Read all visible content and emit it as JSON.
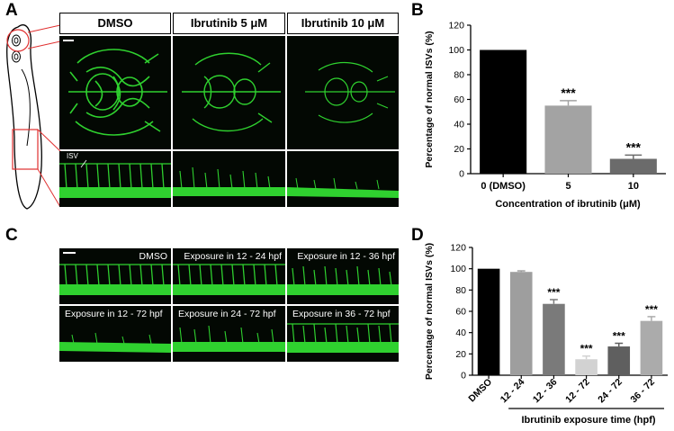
{
  "panels": {
    "a": "A",
    "b": "B",
    "c": "C",
    "d": "D"
  },
  "panel_a": {
    "headers": [
      "DMSO",
      "Ibrutinib 5 μM",
      "Ibrutinib 10 μM"
    ],
    "isv_label": "ISV"
  },
  "panel_c": {
    "labels": [
      "DMSO",
      "Exposure in 12 - 24 hpf",
      "Exposure in 12 - 36 hpf",
      "Exposure in 12 - 72 hpf",
      "Exposure in 24 - 72 hpf",
      "Exposure in 36 - 72 hpf"
    ]
  },
  "colors": {
    "vessel": "#2fd12f",
    "background": "#030803"
  },
  "chart_data": [
    {
      "id": "B",
      "type": "bar",
      "categories": [
        "0 (DMSO)",
        "5",
        "10"
      ],
      "values": [
        100,
        55,
        12
      ],
      "errors": [
        0,
        4,
        3
      ],
      "significance": [
        "",
        "***",
        "***"
      ],
      "colors": [
        "#000000",
        "#a3a3a3",
        "#6b6b6b"
      ],
      "xlabel": "Concentration of ibrutinib (μM)",
      "ylabel": "Percentage of normal ISVs (%)",
      "ylim": [
        0,
        120
      ],
      "yticks": [
        0,
        20,
        40,
        60,
        80,
        100,
        120
      ],
      "grid": false
    },
    {
      "id": "D",
      "type": "bar",
      "categories": [
        "DMSO",
        "12 - 24",
        "12 - 36",
        "12 - 72",
        "24 - 72",
        "36 - 72"
      ],
      "values": [
        100,
        97,
        67,
        15,
        27,
        51
      ],
      "errors": [
        0,
        1,
        4,
        3,
        3,
        4
      ],
      "significance": [
        "",
        "",
        "***",
        "***",
        "***",
        "***"
      ],
      "colors": [
        "#000000",
        "#9e9e9e",
        "#7a7a7a",
        "#d2d2d2",
        "#5f5f5f",
        "#ababab"
      ],
      "xlabel": "Ibrutinib exposure time (hpf)",
      "ylabel": "Percentage of normal ISVs (%)",
      "ylim": [
        0,
        120
      ],
      "yticks": [
        0,
        20,
        40,
        60,
        80,
        100,
        120
      ],
      "grid": false
    }
  ]
}
